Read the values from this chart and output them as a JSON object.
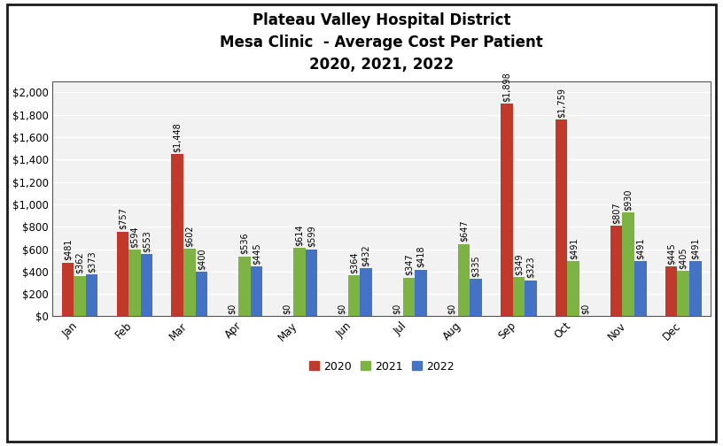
{
  "title_line1": "Plateau Valley Hospital District",
  "title_line2": "Mesa Clinic  - Average Cost Per Patient",
  "title_line3": "2020, 2021, 2022",
  "months": [
    "Jan",
    "Feb",
    "Mar",
    "Apr",
    "May",
    "Jun",
    "Jul",
    "Aug",
    "Sep",
    "Oct",
    "Nov",
    "Dec"
  ],
  "series": {
    "2020": [
      481,
      757,
      1448,
      0,
      0,
      0,
      0,
      0,
      1898,
      1759,
      807,
      445
    ],
    "2021": [
      362,
      594,
      602,
      536,
      614,
      364,
      347,
      647,
      349,
      491,
      930,
      405
    ],
    "2022": [
      373,
      553,
      400,
      445,
      599,
      432,
      418,
      335,
      323,
      0,
      491,
      491
    ]
  },
  "colors": {
    "2020": "#C0392B",
    "2021": "#7CB342",
    "2022": "#4472C4"
  },
  "ylim": [
    0,
    2100
  ],
  "yticks": [
    0,
    200,
    400,
    600,
    800,
    1000,
    1200,
    1400,
    1600,
    1800,
    2000
  ],
  "ytick_labels": [
    "$0",
    "$200",
    "$400",
    "$600",
    "$800",
    "$1,000",
    "$1,200",
    "$1,400",
    "$1,600",
    "$1,800",
    "$2,000"
  ],
  "bar_width": 0.22,
  "background_color": "#FFFFFF",
  "plot_bg_color": "#F2F2F2",
  "grid_color": "#FFFFFF",
  "legend_labels": [
    "2020",
    "2021",
    "2022"
  ],
  "title_fontsize": 12,
  "label_fontsize": 7,
  "tick_fontsize": 8.5,
  "border_color": "#1a1a1a",
  "border_linewidth": 2.0
}
